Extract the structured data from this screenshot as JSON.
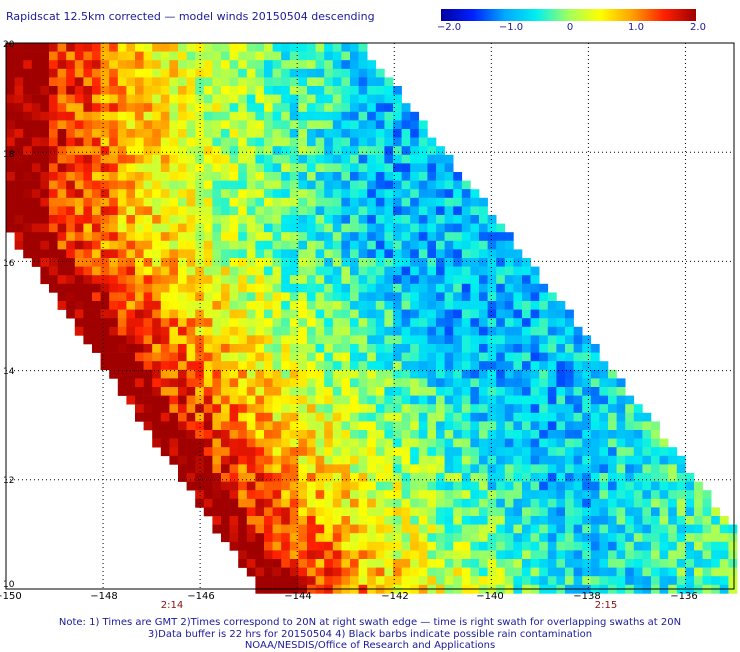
{
  "title": "Rapidscat 12.5km corrected — model winds 20150504 descending",
  "colorbar": {
    "tick_labels": [
      "−2.0",
      "−1.0",
      "0",
      "1.0",
      "2.0"
    ],
    "range": [
      -2.0,
      2.0
    ],
    "colors": [
      "#0000a0",
      "#0020ff",
      "#00a8ff",
      "#00f0f0",
      "#a0ff60",
      "#ffff00",
      "#ffa000",
      "#ff2000",
      "#a00000"
    ]
  },
  "axes": {
    "lon_labels": [
      "−150",
      "−148",
      "−146",
      "−144",
      "−142",
      "−140",
      "−138",
      "−136"
    ],
    "lat_labels": [
      "20",
      "18",
      "16",
      "14",
      "12",
      "10"
    ],
    "lon_range": [
      -150,
      -135
    ],
    "lat_range": [
      10,
      20
    ]
  },
  "times": [
    {
      "label": "2:14",
      "lon": -147.2
    },
    {
      "label": "2:15",
      "lon": -137.7
    }
  ],
  "notes": [
    "Note: 1) Times are GMT 2)Times correspond to 20N at right swath edge — time is right swath for overlapping swaths at 20N",
    "3)Data buffer is 22 hrs for 20150504 4) Black barbs indicate possible rain contamination",
    "NOAA/NESDIS/Office of Research and Applications"
  ]
}
